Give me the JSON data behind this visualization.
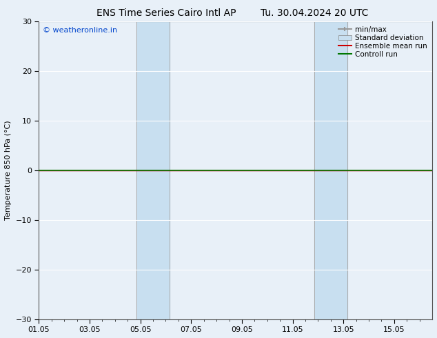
{
  "title_left": "ENS Time Series Cairo Intl AP",
  "title_right": "Tu. 30.04.2024 20 UTC",
  "ylabel": "Temperature 850 hPa (°C)",
  "ylim": [
    -30,
    30
  ],
  "yticks": [
    -30,
    -20,
    -10,
    0,
    10,
    20,
    30
  ],
  "xtick_labels": [
    "01.05",
    "03.05",
    "05.05",
    "07.05",
    "09.05",
    "11.05",
    "13.05",
    "15.05"
  ],
  "xtick_positions": [
    0,
    2,
    4,
    6,
    8,
    10,
    12,
    14
  ],
  "xlim": [
    0,
    15.5
  ],
  "watermark": "© weatheronline.in",
  "watermark_color": "#0044cc",
  "bg_color": "#e8f0f8",
  "plot_bg_color": "#e8f0f8",
  "grid_color": "#ffffff",
  "shaded_bands": [
    {
      "x_start": 3.85,
      "x_end": 5.15,
      "color": "#c8dff0"
    },
    {
      "x_start": 10.85,
      "x_end": 12.15,
      "color": "#c8dff0"
    }
  ],
  "vertical_lines": [
    {
      "x": 3.85,
      "color": "#aaaaaa",
      "lw": 0.7
    },
    {
      "x": 5.15,
      "color": "#aaaaaa",
      "lw": 0.7
    },
    {
      "x": 10.85,
      "color": "#aaaaaa",
      "lw": 0.7
    },
    {
      "x": 12.15,
      "color": "#aaaaaa",
      "lw": 0.7
    }
  ],
  "control_run_y": 0.0,
  "control_run_color": "#007700",
  "ensemble_mean_color": "#cc0000",
  "minmax_color": "#999999",
  "std_dev_color": "#c8dff0",
  "legend_labels": [
    "min/max",
    "Standard deviation",
    "Ensemble mean run",
    "Controll run"
  ],
  "legend_colors": [
    "#999999",
    "#c8dff0",
    "#cc0000",
    "#007700"
  ],
  "title_fontsize": 10,
  "axis_label_fontsize": 8,
  "tick_fontsize": 8,
  "legend_fontsize": 7.5
}
